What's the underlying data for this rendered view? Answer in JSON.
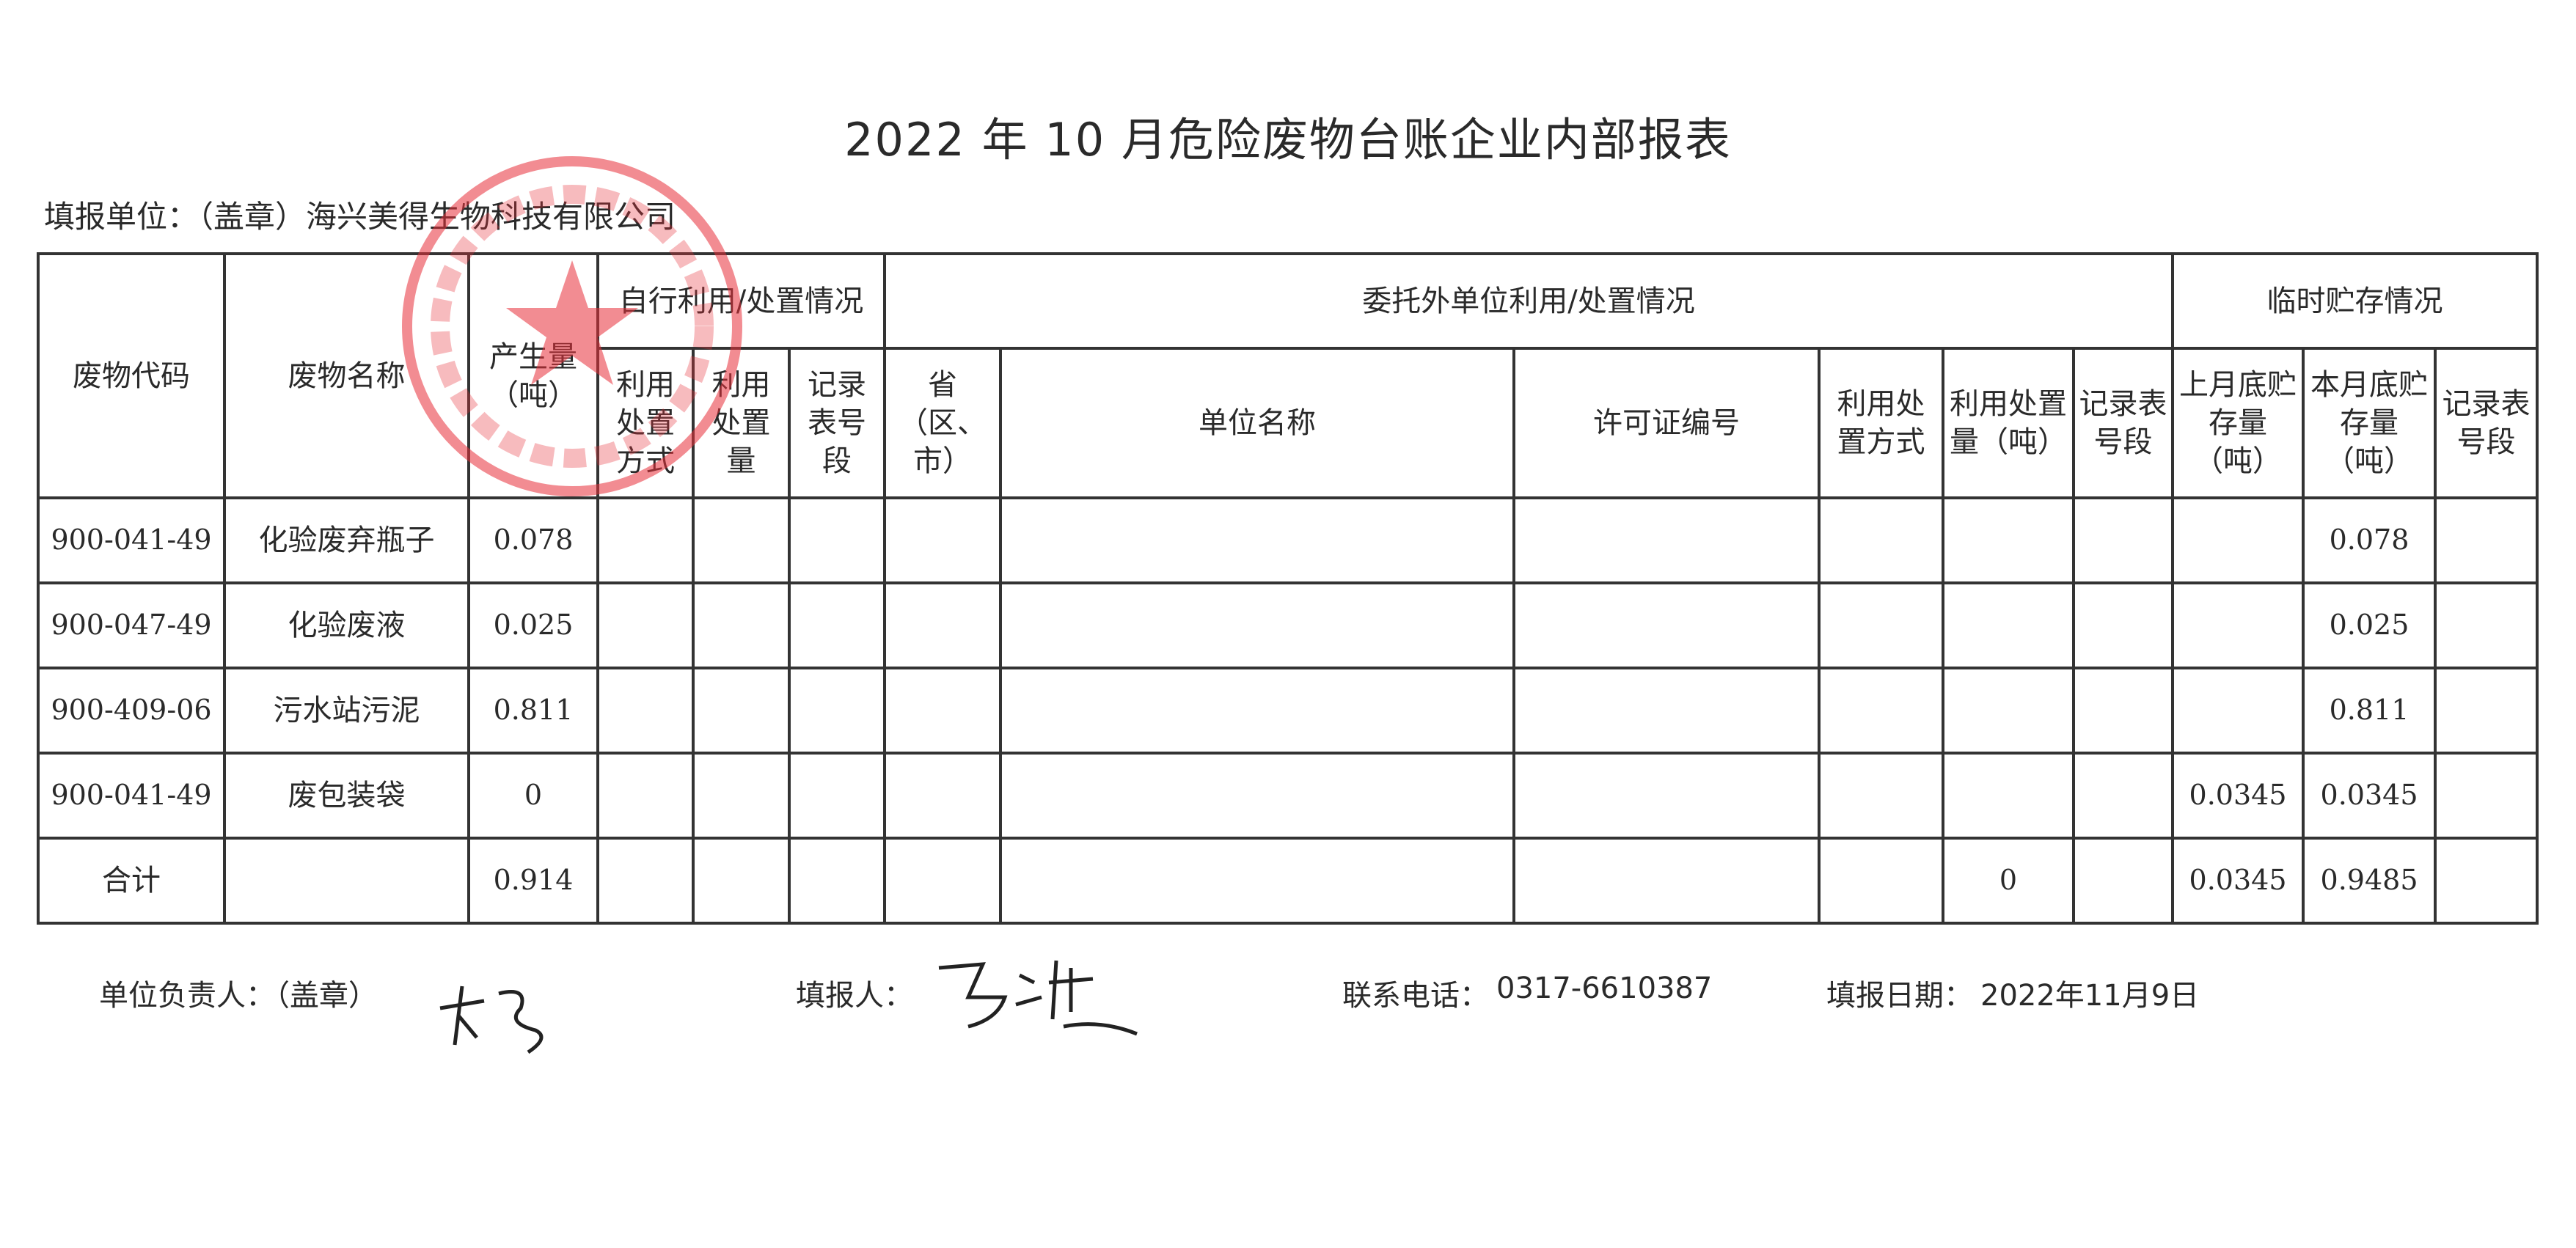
{
  "title": "2022 年 10 月危险废物台账企业内部报表",
  "unit_label": "填报单位：（盖章）海兴美得生物科技有限公司",
  "headers": {
    "code": "废物代码",
    "name": "废物名称",
    "amount": "产生量（吨）",
    "self_group": "自行利用/处置情况",
    "self_method": "利用处置方式",
    "self_qty": "利用处置量",
    "self_record": "记录表号段",
    "ext_group": "委托外单位利用/处置情况",
    "ext_province": "省（区、市）",
    "ext_unit": "单位名称",
    "ext_license": "许可证编号",
    "ext_method": "利用处置方式",
    "ext_qty": "利用处置量（吨）",
    "ext_record": "记录表号段",
    "store_group": "临时贮存情况",
    "store_prev": "上月底贮存量（吨）",
    "store_curr": "本月底贮存量（吨）",
    "store_record": "记录表号段"
  },
  "rows": [
    {
      "code": "900-041-49",
      "name": "化验废弃瓶子",
      "amount": "0.078",
      "ext_qty": "",
      "store_prev": "",
      "store_curr": "0.078"
    },
    {
      "code": "900-047-49",
      "name": "化验废液",
      "amount": "0.025",
      "ext_qty": "",
      "store_prev": "",
      "store_curr": "0.025"
    },
    {
      "code": "900-409-06",
      "name": "污水站污泥",
      "amount": "0.811",
      "ext_qty": "",
      "store_prev": "",
      "store_curr": "0.811"
    },
    {
      "code": "900-041-49",
      "name": "废包装袋",
      "amount": "0",
      "ext_qty": "",
      "store_prev": "0.0345",
      "store_curr": "0.0345"
    },
    {
      "code": "合计",
      "name": "",
      "amount": "0.914",
      "ext_qty": "0",
      "store_prev": "0.0345",
      "store_curr": "0.9485"
    }
  ],
  "footer": {
    "leader_label": "单位负责人：（盖章）",
    "filler_label": "填报人：",
    "phone_label": "联系电话：",
    "phone": "0317-6610387",
    "date_label": "填报日期：",
    "date": "2022年11月9日"
  },
  "stamp_text": "海兴美得生物科技有限公司",
  "stamp_color": "#e8303a"
}
